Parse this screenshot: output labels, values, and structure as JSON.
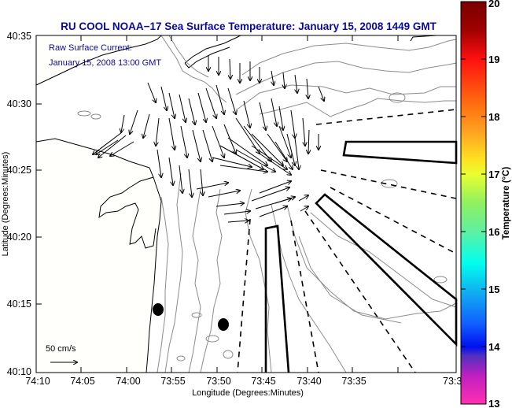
{
  "title": "RU COOL  NOAA−17  Sea Surface Temperature:  January 15, 2008 1449 GMT",
  "legend": {
    "line1": "Raw Surface Current:",
    "line2": "January 15, 2008 13:00 GMT"
  },
  "scale_label": "50 cm/s",
  "axes": {
    "xlabel": "Longitude (Degrees:Minutes)",
    "ylabel": "Latitude (Degrees:Minutes)",
    "xticks": [
      "74:10",
      "74:05",
      "74:00",
      "73:55",
      "73:50",
      "73:45",
      "73:40",
      "73:35",
      "73:3"
    ],
    "yticks": [
      "40:35",
      "40:30",
      "40:25",
      "40:20",
      "40:15",
      "40:10"
    ]
  },
  "colorbar": {
    "label": "Temperature (°C)",
    "ticks": [
      "20",
      "19",
      "18",
      "17",
      "16",
      "15",
      "14",
      "13"
    ],
    "min": 13,
    "max": 20
  },
  "colors": {
    "title": "#0a0a96",
    "contour": "#8c8c8c",
    "land": "#fffffb",
    "markers": "#000000"
  }
}
